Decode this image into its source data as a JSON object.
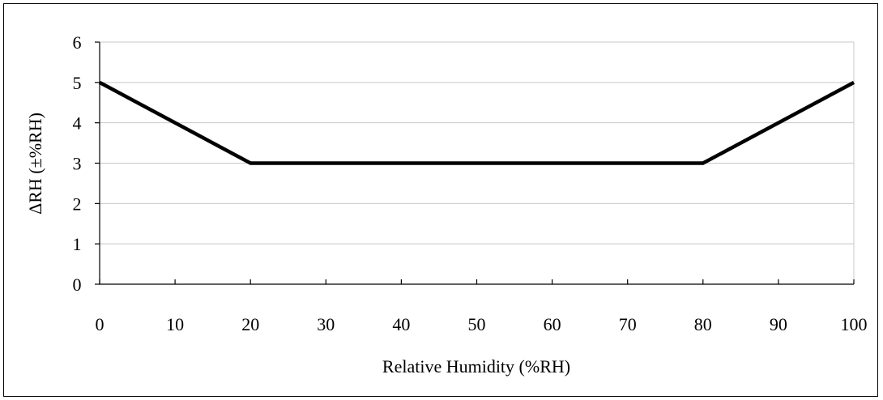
{
  "chart_data": {
    "type": "line",
    "title": "",
    "xlabel": "Relative Humidity (%RH)",
    "ylabel": "ΔRH (±%RH)",
    "xlim": [
      0,
      100
    ],
    "ylim": [
      0,
      6
    ],
    "x_ticks": [
      "0",
      "10",
      "20",
      "30",
      "40",
      "50",
      "60",
      "70",
      "80",
      "90",
      "100"
    ],
    "y_ticks": [
      "0",
      "1",
      "2",
      "3",
      "4",
      "5",
      "6"
    ],
    "grid": "horizontal",
    "series": [
      {
        "x": [
          0,
          20,
          80,
          100
        ],
        "y": [
          5,
          3,
          3,
          5
        ],
        "color": "#000000"
      }
    ]
  }
}
